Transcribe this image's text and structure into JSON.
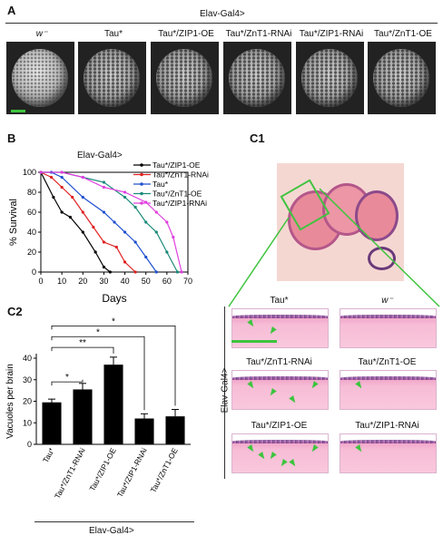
{
  "panel_a": {
    "label": "A",
    "header": "Elav-Gal4>",
    "genotypes": [
      "w⁻",
      "Tau*",
      "Tau*/ZIP1-OE",
      "Tau*/ZnT1-RNAi",
      "Tau*/ZIP1-RNAi",
      "Tau*/ZnT1-OE"
    ]
  },
  "panel_b": {
    "label": "B",
    "header": "Elav-Gal4>",
    "chart_data": {
      "type": "line",
      "xlabel": "Days",
      "ylabel": "% Survival",
      "xlim": [
        0,
        70
      ],
      "ylim": [
        0,
        100
      ],
      "xticks": [
        0,
        10,
        20,
        30,
        40,
        50,
        60,
        70
      ],
      "yticks": [
        0,
        20,
        40,
        60,
        80,
        100
      ],
      "series": [
        {
          "name": "Tau*/ZIP1-OE",
          "color": "#000000",
          "x": [
            0,
            6,
            10,
            14,
            20,
            26,
            30,
            33
          ],
          "y": [
            100,
            75,
            60,
            55,
            40,
            20,
            5,
            0
          ]
        },
        {
          "name": "Tau*/ZnT1-RNAi",
          "color": "#e02020",
          "x": [
            0,
            5,
            10,
            15,
            20,
            25,
            30,
            36,
            40,
            45
          ],
          "y": [
            100,
            95,
            85,
            75,
            60,
            45,
            30,
            25,
            10,
            0
          ]
        },
        {
          "name": "Tau*",
          "color": "#2050d0",
          "x": [
            0,
            5,
            10,
            20,
            30,
            35,
            40,
            45,
            50,
            55
          ],
          "y": [
            100,
            100,
            95,
            75,
            60,
            50,
            40,
            30,
            15,
            0
          ]
        },
        {
          "name": "Tau*/ZnT1-OE",
          "color": "#1a8a7a",
          "x": [
            0,
            10,
            20,
            30,
            40,
            45,
            50,
            55,
            60,
            65
          ],
          "y": [
            100,
            100,
            95,
            90,
            75,
            65,
            50,
            40,
            20,
            0
          ]
        },
        {
          "name": "Tau*/ZIP1-RNAi",
          "color": "#e040e0",
          "x": [
            0,
            10,
            20,
            30,
            40,
            50,
            55,
            60,
            63,
            67
          ],
          "y": [
            100,
            100,
            95,
            85,
            80,
            70,
            60,
            50,
            35,
            0
          ]
        }
      ]
    }
  },
  "panel_c1": {
    "label": "C1",
    "side_label": "Elav-Gal4>",
    "images": [
      {
        "genotype": "Tau*",
        "arrows": 2
      },
      {
        "genotype": "w⁻",
        "arrows": 0
      },
      {
        "genotype": "Tau*/ZnT1-RNAi",
        "arrows": 4
      },
      {
        "genotype": "Tau*/ZnT1-OE",
        "arrows": 1
      },
      {
        "genotype": "Tau*/ZIP1-OE",
        "arrows": 6
      },
      {
        "genotype": "Tau*/ZIP1-RNAi",
        "arrows": 1
      }
    ]
  },
  "panel_c2": {
    "label": "C2",
    "footer": "Elav-Gal4>",
    "chart_data": {
      "type": "bar",
      "categories": [
        "Tau*",
        "Tau*/ZnT1-RNAi",
        "Tau*/ZIP1-OE",
        "Tau*/ZIP1-RNAi",
        "Tau*/ZnT1-OE"
      ],
      "values": [
        19.5,
        25.5,
        37,
        12,
        13
      ],
      "errors": [
        1.5,
        2.8,
        3.5,
        2.2,
        3.2
      ],
      "ylabel": "Vacuoles per brain",
      "ylim": [
        0,
        40
      ],
      "yticks": [
        0,
        10,
        20,
        30,
        40
      ],
      "significance": [
        {
          "from": 0,
          "to": 1,
          "label": "*"
        },
        {
          "from": 0,
          "to": 2,
          "label": "**"
        },
        {
          "from": 0,
          "to": 3,
          "label": "*"
        },
        {
          "from": 0,
          "to": 4,
          "label": "*"
        }
      ]
    }
  }
}
